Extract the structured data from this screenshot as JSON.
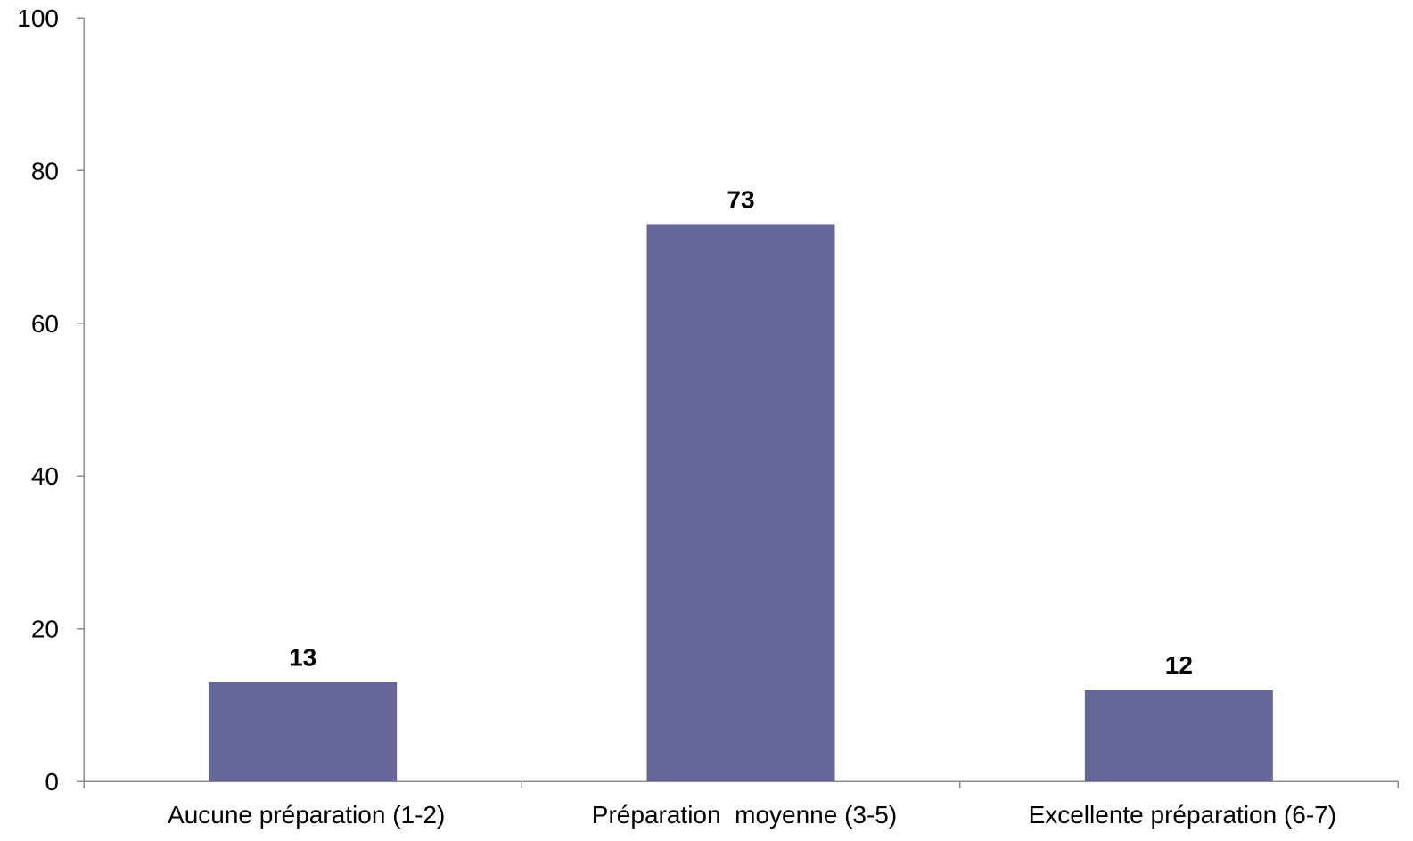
{
  "chart_data": {
    "type": "bar",
    "title": "",
    "xlabel": "",
    "ylabel": "",
    "categories": [
      "Aucune préparation (1-2)",
      "Préparation  moyenne (3-5)",
      "Excellente préparation (6-7)"
    ],
    "values": [
      13,
      73,
      12
    ],
    "data_labels": [
      "13",
      "73",
      "12"
    ],
    "ylim": [
      0,
      100
    ],
    "yticks": [
      0,
      20,
      40,
      60,
      80,
      100
    ],
    "ytick_labels": [
      "0",
      "20",
      "40",
      "60",
      "80",
      "100"
    ],
    "bar_color": "#666699",
    "grid": false,
    "legend": "none"
  }
}
